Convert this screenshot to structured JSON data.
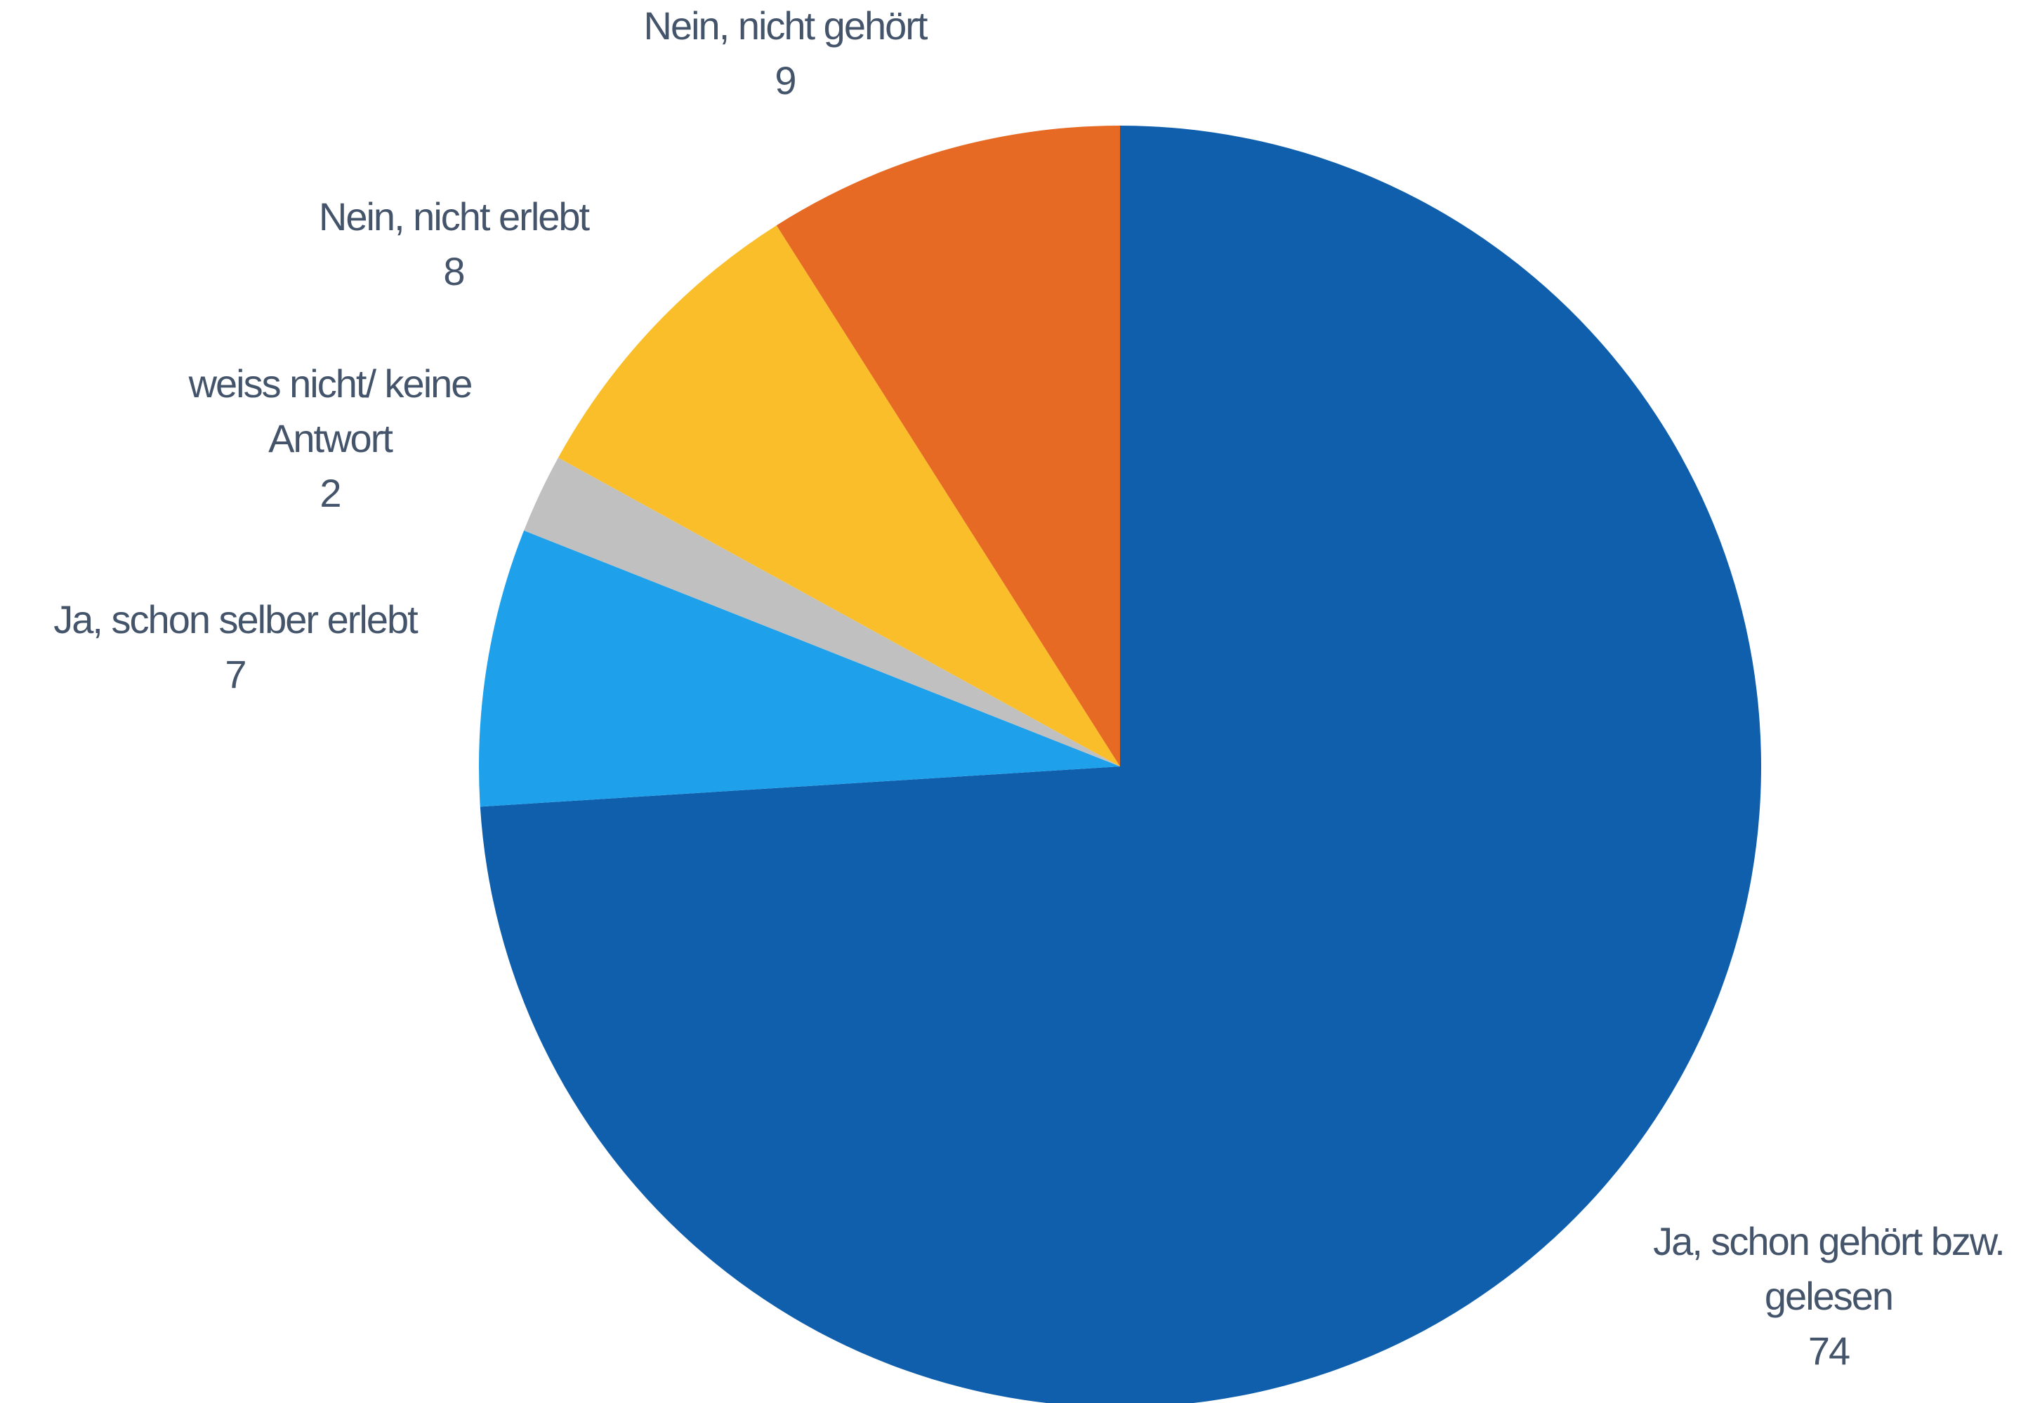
{
  "chart_data": {
    "type": "pie",
    "start_angle_deg": 0,
    "direction": "clockwise",
    "slices": [
      {
        "label_lines": [
          "Ja, schon gehört bzw.",
          "gelesen"
        ],
        "value": 74,
        "value_label": "74",
        "color": "#0f5fad"
      },
      {
        "label_lines": [
          "Ja, schon selber erlebt"
        ],
        "value": 7,
        "value_label": "7",
        "color": "#1ea0ea"
      },
      {
        "label_lines": [
          "weiss nicht/ keine",
          "Antwort"
        ],
        "value": 2,
        "value_label": "2",
        "color": "#c0c0c0"
      },
      {
        "label_lines": [
          "Nein, nicht erlebt"
        ],
        "value": 8,
        "value_label": "8",
        "color": "#f9be2a"
      },
      {
        "label_lines": [
          "Nein, nicht gehört"
        ],
        "value": 9,
        "value_label": "9",
        "color": "#e66a24"
      }
    ],
    "label_color": "#44546a"
  }
}
